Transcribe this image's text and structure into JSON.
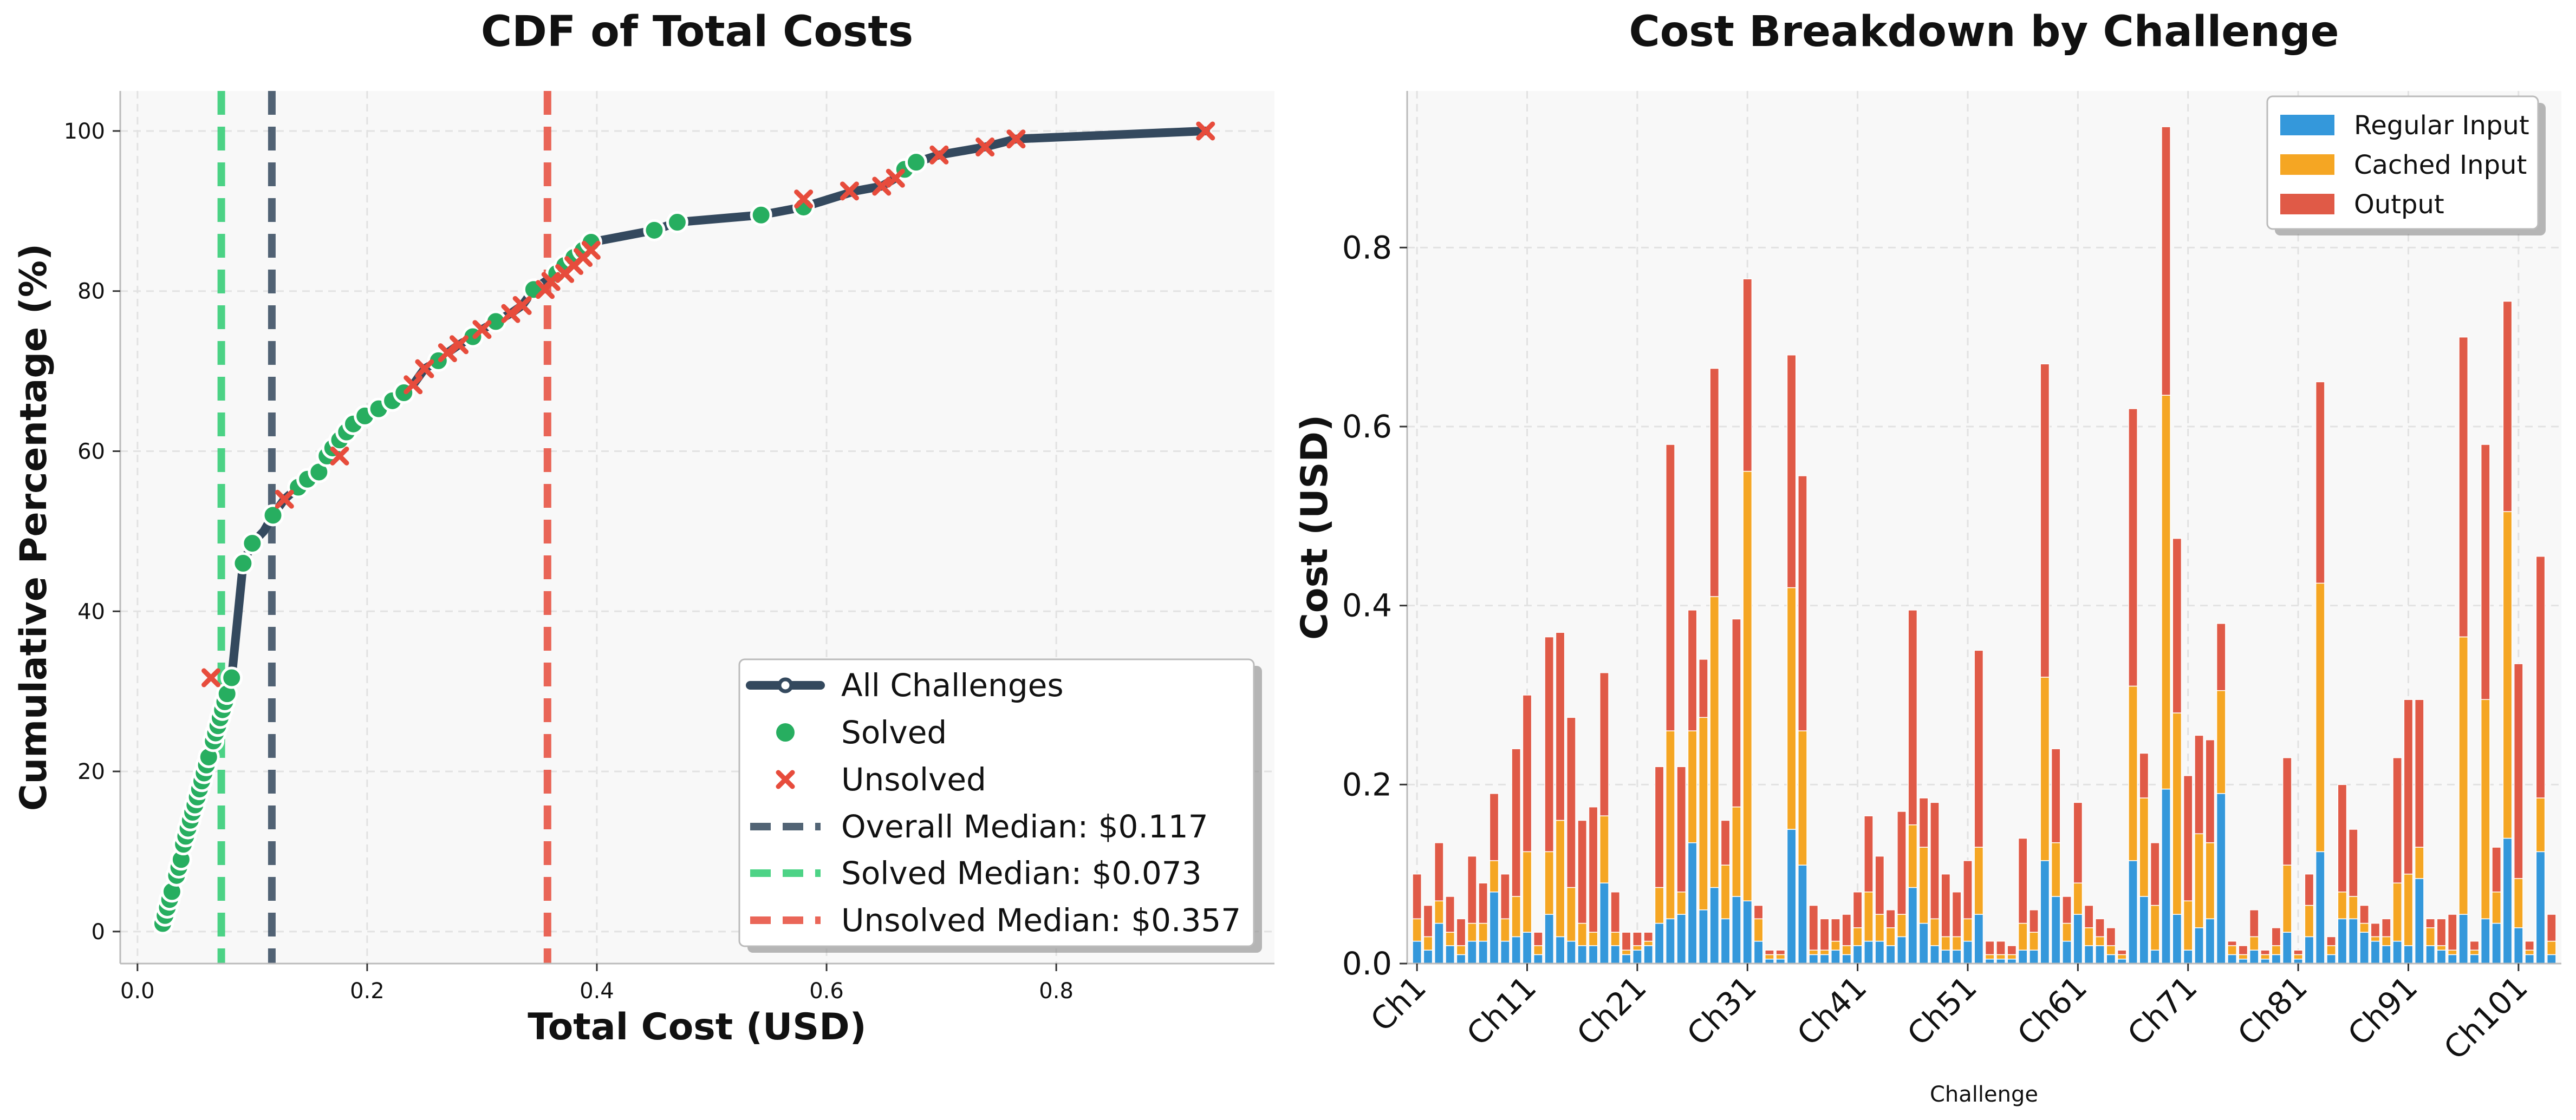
{
  "chart_data": [
    {
      "type": "line",
      "title": "CDF of Total Costs",
      "xlabel": "Total Cost (USD)",
      "ylabel": "Cumulative Percentage (%)",
      "xlim": [
        -0.015,
        0.99
      ],
      "ylim": [
        -4,
        105
      ],
      "xticks": [
        0.0,
        0.2,
        0.4,
        0.6,
        0.8
      ],
      "xtick_labels": [
        "0.0",
        "0.2",
        "0.4",
        "0.6",
        "0.8"
      ],
      "yticks": [
        0,
        20,
        40,
        60,
        80,
        100
      ],
      "ytick_labels": [
        "0",
        "20",
        "40",
        "60",
        "80",
        "100"
      ],
      "grid": true,
      "legend_position": "lower-right",
      "colors": {
        "all": "#34495e",
        "solved": "#27ae60",
        "unsolved": "#e74c3c",
        "overall_median": "#34495e",
        "solved_median": "#2ecc71",
        "unsolved_median": "#e74c3c"
      },
      "legend": [
        "All Challenges",
        "Solved",
        "Unsolved",
        "Overall Median: $0.117",
        "Solved Median: $0.073",
        "Unsolved Median: $0.357"
      ],
      "medians": {
        "overall": 0.117,
        "solved": 0.073,
        "unsolved": 0.357
      },
      "series": [
        {
          "name": "All Challenges",
          "x": [
            0.022,
            0.024,
            0.026,
            0.028,
            0.03,
            0.032,
            0.034,
            0.036,
            0.038,
            0.04,
            0.042,
            0.044,
            0.046,
            0.048,
            0.05,
            0.052,
            0.054,
            0.056,
            0.058,
            0.06,
            0.062,
            0.064,
            0.066,
            0.068,
            0.07,
            0.072,
            0.074,
            0.076,
            0.078,
            0.082,
            0.092,
            0.1,
            0.11,
            0.118,
            0.128,
            0.14,
            0.148,
            0.158,
            0.165,
            0.17,
            0.176,
            0.182,
            0.188,
            0.198,
            0.21,
            0.222,
            0.232,
            0.24,
            0.25,
            0.262,
            0.27,
            0.28,
            0.292,
            0.3,
            0.312,
            0.325,
            0.335,
            0.345,
            0.355,
            0.365,
            0.372,
            0.38,
            0.388,
            0.395,
            0.45,
            0.47,
            0.543,
            0.58,
            0.625,
            0.648,
            0.66,
            0.668,
            0.678,
            0.698,
            0.738,
            0.765,
            0.93
          ],
          "y": [
            1.0,
            2.0,
            3.0,
            4.0,
            5.0,
            6.0,
            7.0,
            8.0,
            9.0,
            10.9,
            11.9,
            12.9,
            13.9,
            14.9,
            15.8,
            16.8,
            17.8,
            18.8,
            19.8,
            20.8,
            21.8,
            22.8,
            23.8,
            24.8,
            25.7,
            26.7,
            27.7,
            28.7,
            29.7,
            31.7,
            46.0,
            48.5,
            50.0,
            52.0,
            54.0,
            55.5,
            56.5,
            57.4,
            59.4,
            60.4,
            61.4,
            62.4,
            63.4,
            64.4,
            65.3,
            66.3,
            67.3,
            68.3,
            70.3,
            71.3,
            72.3,
            73.3,
            74.3,
            75.2,
            76.2,
            77.2,
            78.2,
            80.2,
            81.2,
            82.2,
            83.2,
            84.2,
            85.1,
            86.1,
            87.6,
            88.6,
            89.5,
            90.5,
            92.5,
            93.1,
            94.1,
            95.2,
            96.1,
            97.0,
            98.0,
            99.0,
            100.0
          ]
        },
        {
          "name": "Solved",
          "x": [
            0.022,
            0.024,
            0.026,
            0.028,
            0.03,
            0.034,
            0.036,
            0.038,
            0.04,
            0.042,
            0.044,
            0.046,
            0.048,
            0.05,
            0.052,
            0.054,
            0.056,
            0.058,
            0.06,
            0.062,
            0.066,
            0.068,
            0.07,
            0.072,
            0.074,
            0.076,
            0.078,
            0.082,
            0.092,
            0.1,
            0.118,
            0.14,
            0.148,
            0.158,
            0.165,
            0.17,
            0.176,
            0.182,
            0.188,
            0.198,
            0.21,
            0.222,
            0.232,
            0.262,
            0.292,
            0.312,
            0.345,
            0.365,
            0.372,
            0.38,
            0.388,
            0.395,
            0.45,
            0.47,
            0.543,
            0.58,
            0.668,
            0.678
          ],
          "y": [
            1.0,
            2.0,
            3.0,
            4.0,
            5.0,
            7.0,
            8.0,
            9.0,
            10.9,
            11.9,
            12.9,
            13.9,
            14.9,
            15.8,
            16.8,
            17.8,
            18.8,
            19.8,
            20.8,
            21.8,
            23.8,
            24.8,
            25.7,
            26.7,
            27.7,
            28.7,
            29.7,
            31.7,
            46.0,
            48.5,
            52.0,
            55.5,
            56.5,
            57.4,
            59.4,
            60.4,
            61.4,
            62.4,
            63.4,
            64.4,
            65.3,
            66.3,
            67.3,
            71.3,
            74.3,
            76.2,
            80.2,
            82.2,
            83.2,
            84.2,
            85.1,
            86.1,
            87.6,
            88.6,
            89.5,
            90.5,
            95.2,
            96.1
          ]
        },
        {
          "name": "Unsolved",
          "x": [
            0.064,
            0.128,
            0.176,
            0.24,
            0.25,
            0.27,
            0.28,
            0.3,
            0.325,
            0.335,
            0.355,
            0.36,
            0.372,
            0.38,
            0.388,
            0.395,
            0.58,
            0.62,
            0.648,
            0.66,
            0.698,
            0.738,
            0.765,
            0.93
          ],
          "y": [
            31.7,
            54.0,
            59.4,
            68.3,
            70.3,
            72.3,
            73.3,
            75.2,
            77.2,
            78.2,
            80.2,
            81.2,
            82.2,
            83.2,
            84.2,
            85.1,
            91.5,
            92.5,
            93.1,
            94.1,
            97.0,
            98.0,
            99.0,
            100.0
          ]
        }
      ]
    },
    {
      "type": "bar",
      "stacked": true,
      "title": "Cost Breakdown by Challenge",
      "xlabel": "Challenge",
      "ylabel": "Cost (USD)",
      "ylim": [
        0,
        0.975
      ],
      "yticks": [
        0.0,
        0.2,
        0.4,
        0.6,
        0.8
      ],
      "ytick_labels": [
        "0.0",
        "0.2",
        "0.4",
        "0.6",
        "0.8"
      ],
      "xticks": [
        "Ch1",
        "Ch11",
        "Ch21",
        "Ch31",
        "Ch41",
        "Ch51",
        "Ch61",
        "Ch71",
        "Ch81",
        "Ch91",
        "Ch101"
      ],
      "grid": true,
      "legend_position": "top-right",
      "n_bars": 104,
      "series": [
        {
          "name": "Regular Input",
          "color": "#3498db",
          "values": [
            0.025,
            0.015,
            0.045,
            0.02,
            0.01,
            0.025,
            0.025,
            0.08,
            0.025,
            0.03,
            0.035,
            0.01,
            0.055,
            0.03,
            0.025,
            0.02,
            0.02,
            0.09,
            0.02,
            0.01,
            0.015,
            0.02,
            0.045,
            0.05,
            0.055,
            0.135,
            0.06,
            0.085,
            0.05,
            0.075,
            0.07,
            0.025,
            0.005,
            0.005,
            0.15,
            0.11,
            0.01,
            0.01,
            0.015,
            0.01,
            0.02,
            0.025,
            0.025,
            0.02,
            0.03,
            0.085,
            0.045,
            0.02,
            0.015,
            0.015,
            0.025,
            0.055,
            0.005,
            0.005,
            0.005,
            0.015,
            0.015,
            0.115,
            0.075,
            0.025,
            0.055,
            0.02,
            0.02,
            0.01,
            0.005,
            0.115,
            0.075,
            0.015,
            0.195,
            0.055,
            0.015,
            0.04,
            0.05,
            0.19,
            0.01,
            0.005,
            0.015,
            0.005,
            0.01,
            0.035,
            0.005,
            0.03,
            0.125,
            0.01,
            0.05,
            0.05,
            0.035,
            0.025,
            0.02,
            0.025,
            0.02,
            0.095,
            0.02,
            0.015,
            0.01,
            0.055,
            0.01,
            0.05,
            0.045,
            0.14,
            0.04,
            0.01,
            0.125,
            0.01
          ]
        },
        {
          "name": "Cached Input",
          "color": "#f5a623",
          "values": [
            0.025,
            0.015,
            0.025,
            0.015,
            0.01,
            0.02,
            0.02,
            0.035,
            0.025,
            0.045,
            0.09,
            0.01,
            0.07,
            0.13,
            0.06,
            0.025,
            0.015,
            0.075,
            0.015,
            0.005,
            0.005,
            0.005,
            0.04,
            0.21,
            0.025,
            0.125,
            0.215,
            0.325,
            0.06,
            0.1,
            0.48,
            0.025,
            0.005,
            0.005,
            0.27,
            0.15,
            0.005,
            0.005,
            0.01,
            0.01,
            0.02,
            0.055,
            0.03,
            0.02,
            0.025,
            0.07,
            0.085,
            0.03,
            0.015,
            0.015,
            0.025,
            0.075,
            0.005,
            0.005,
            0.005,
            0.03,
            0.02,
            0.205,
            0.06,
            0.02,
            0.035,
            0.02,
            0.01,
            0.01,
            0.005,
            0.195,
            0.11,
            0.05,
            0.44,
            0.225,
            0.055,
            0.105,
            0.085,
            0.115,
            0.01,
            0.005,
            0.015,
            0.005,
            0.01,
            0.075,
            0.005,
            0.035,
            0.3,
            0.01,
            0.03,
            0.025,
            0.01,
            0.005,
            0.01,
            0.065,
            0.08,
            0.035,
            0.02,
            0.005,
            0.005,
            0.31,
            0.005,
            0.245,
            0.035,
            0.365,
            0.055,
            0.005,
            0.06,
            0.015
          ]
        },
        {
          "name": "Output",
          "color": "#e05a47",
          "values": [
            0.05,
            0.035,
            0.065,
            0.04,
            0.03,
            0.075,
            0.045,
            0.075,
            0.05,
            0.165,
            0.175,
            0.015,
            0.24,
            0.21,
            0.19,
            0.115,
            0.14,
            0.16,
            0.045,
            0.02,
            0.015,
            0.01,
            0.135,
            0.32,
            0.14,
            0.135,
            0.065,
            0.255,
            0.05,
            0.21,
            0.215,
            0.015,
            0.005,
            0.005,
            0.26,
            0.285,
            0.05,
            0.035,
            0.025,
            0.035,
            0.04,
            0.085,
            0.065,
            0.02,
            0.115,
            0.24,
            0.055,
            0.13,
            0.07,
            0.05,
            0.065,
            0.22,
            0.015,
            0.015,
            0.01,
            0.095,
            0.025,
            0.35,
            0.105,
            0.03,
            0.09,
            0.025,
            0.02,
            0.02,
            0.005,
            0.31,
            0.05,
            0.07,
            0.3,
            0.195,
            0.14,
            0.11,
            0.115,
            0.075,
            0.005,
            0.01,
            0.03,
            0.005,
            0.02,
            0.12,
            0.005,
            0.035,
            0.225,
            0.01,
            0.12,
            0.075,
            0.02,
            0.015,
            0.02,
            0.14,
            0.195,
            0.165,
            0.01,
            0.03,
            0.04,
            0.335,
            0.01,
            0.285,
            0.05,
            0.235,
            0.24,
            0.01,
            0.27,
            0.03
          ]
        }
      ]
    }
  ]
}
